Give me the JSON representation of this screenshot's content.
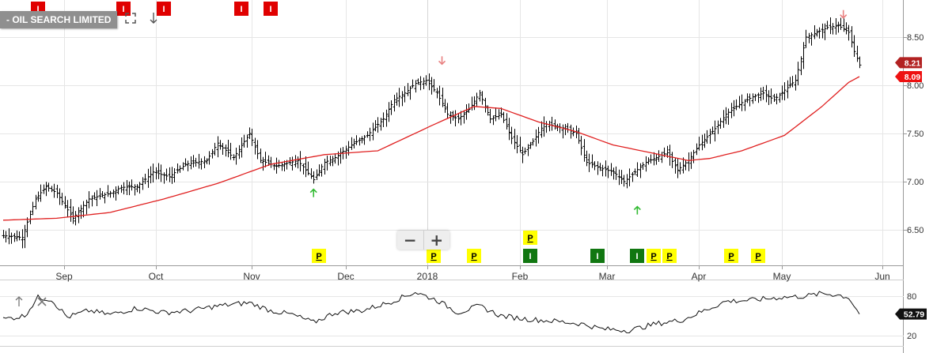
{
  "title": "- OIL SEARCH LIMITED",
  "icons": {
    "fullscreen": "fullscreen-icon",
    "download": "down-arrow-icon",
    "sub_up": "up-arrow-icon",
    "sub_close": "close-icon"
  },
  "zoom": {
    "minus": "−",
    "plus": "+"
  },
  "colors": {
    "bar": "#000000",
    "ma": "#e02020",
    "grid": "#e6e6e6",
    "axis": "#999999",
    "price_tag": "#b22222",
    "ma_tag": "#ee1111",
    "osc_tag": "#111111",
    "up_arrow": "#33bb33",
    "down_arrow": "#e88080",
    "flag_red": "#e00000",
    "flag_green": "#117711",
    "flag_yellow": "#ffff00"
  },
  "chart_data": [
    {
      "type": "ohlc",
      "series": [
        {
          "name": "",
          "kind": "price"
        },
        {
          "name": "",
          "kind": "moving-average"
        }
      ],
      "x_ticks": [
        "Sep",
        "Oct",
        "Nov",
        "Dec",
        "2018",
        "Feb",
        "Mar",
        "Apr",
        "May",
        "Jun"
      ],
      "y_ticks": [
        "6.50",
        "7.00",
        "7.50",
        "8.00",
        "8.50"
      ],
      "ylim": [
        6.2,
        8.8
      ],
      "price_tag": "8.21",
      "ma_tag": "8.09",
      "close_points": [
        {
          "d": 0,
          "c": 6.44
        },
        {
          "d": 7,
          "c": 6.42
        },
        {
          "d": 12,
          "c": 6.82
        },
        {
          "d": 16,
          "c": 6.95
        },
        {
          "d": 20,
          "c": 6.88
        },
        {
          "d": 26,
          "c": 6.62
        },
        {
          "d": 32,
          "c": 6.82
        },
        {
          "d": 40,
          "c": 6.88
        },
        {
          "d": 44,
          "c": 6.94
        },
        {
          "d": 50,
          "c": 6.95
        },
        {
          "d": 56,
          "c": 7.1
        },
        {
          "d": 62,
          "c": 7.05
        },
        {
          "d": 68,
          "c": 7.18
        },
        {
          "d": 76,
          "c": 7.22
        },
        {
          "d": 80,
          "c": 7.4
        },
        {
          "d": 86,
          "c": 7.25
        },
        {
          "d": 92,
          "c": 7.5
        },
        {
          "d": 96,
          "c": 7.22
        },
        {
          "d": 102,
          "c": 7.16
        },
        {
          "d": 110,
          "c": 7.22
        },
        {
          "d": 116,
          "c": 7.02
        },
        {
          "d": 120,
          "c": 7.2
        },
        {
          "d": 124,
          "c": 7.25
        },
        {
          "d": 130,
          "c": 7.38
        },
        {
          "d": 136,
          "c": 7.48
        },
        {
          "d": 142,
          "c": 7.65
        },
        {
          "d": 146,
          "c": 7.85
        },
        {
          "d": 150,
          "c": 7.92
        },
        {
          "d": 154,
          "c": 8.02
        },
        {
          "d": 158,
          "c": 8.05
        },
        {
          "d": 162,
          "c": 7.92
        },
        {
          "d": 166,
          "c": 7.7
        },
        {
          "d": 170,
          "c": 7.65
        },
        {
          "d": 174,
          "c": 7.75
        },
        {
          "d": 178,
          "c": 7.92
        },
        {
          "d": 182,
          "c": 7.65
        },
        {
          "d": 186,
          "c": 7.7
        },
        {
          "d": 190,
          "c": 7.45
        },
        {
          "d": 194,
          "c": 7.28
        },
        {
          "d": 198,
          "c": 7.42
        },
        {
          "d": 202,
          "c": 7.6
        },
        {
          "d": 206,
          "c": 7.58
        },
        {
          "d": 210,
          "c": 7.55
        },
        {
          "d": 214,
          "c": 7.5
        },
        {
          "d": 218,
          "c": 7.2
        },
        {
          "d": 222,
          "c": 7.15
        },
        {
          "d": 228,
          "c": 7.1
        },
        {
          "d": 232,
          "c": 7.0
        },
        {
          "d": 236,
          "c": 7.1
        },
        {
          "d": 240,
          "c": 7.2
        },
        {
          "d": 244,
          "c": 7.25
        },
        {
          "d": 248,
          "c": 7.3
        },
        {
          "d": 252,
          "c": 7.12
        },
        {
          "d": 256,
          "c": 7.22
        },
        {
          "d": 260,
          "c": 7.38
        },
        {
          "d": 266,
          "c": 7.55
        },
        {
          "d": 270,
          "c": 7.7
        },
        {
          "d": 276,
          "c": 7.82
        },
        {
          "d": 280,
          "c": 7.88
        },
        {
          "d": 284,
          "c": 7.92
        },
        {
          "d": 288,
          "c": 7.85
        },
        {
          "d": 292,
          "c": 7.95
        },
        {
          "d": 296,
          "c": 8.05
        },
        {
          "d": 300,
          "c": 8.5
        },
        {
          "d": 304,
          "c": 8.55
        },
        {
          "d": 308,
          "c": 8.6
        },
        {
          "d": 312,
          "c": 8.62
        },
        {
          "d": 316,
          "c": 8.55
        },
        {
          "d": 318,
          "c": 8.35
        },
        {
          "d": 320,
          "c": 8.21
        }
      ],
      "ma_points": [
        {
          "d": 0,
          "v": 6.6
        },
        {
          "d": 20,
          "v": 6.62
        },
        {
          "d": 40,
          "v": 6.68
        },
        {
          "d": 60,
          "v": 6.82
        },
        {
          "d": 80,
          "v": 6.98
        },
        {
          "d": 100,
          "v": 7.18
        },
        {
          "d": 120,
          "v": 7.28
        },
        {
          "d": 140,
          "v": 7.32
        },
        {
          "d": 160,
          "v": 7.58
        },
        {
          "d": 176,
          "v": 7.78
        },
        {
          "d": 186,
          "v": 7.76
        },
        {
          "d": 200,
          "v": 7.62
        },
        {
          "d": 214,
          "v": 7.52
        },
        {
          "d": 228,
          "v": 7.38
        },
        {
          "d": 242,
          "v": 7.3
        },
        {
          "d": 256,
          "v": 7.22
        },
        {
          "d": 264,
          "v": 7.24
        },
        {
          "d": 276,
          "v": 7.32
        },
        {
          "d": 292,
          "v": 7.48
        },
        {
          "d": 306,
          "v": 7.78
        },
        {
          "d": 316,
          "v": 8.03
        },
        {
          "d": 320,
          "v": 8.09
        }
      ],
      "arrows": [
        {
          "dir": "up",
          "d": 116,
          "price": 6.88
        },
        {
          "dir": "down",
          "d": 164,
          "price": 8.26
        },
        {
          "dir": "up",
          "d": 237,
          "price": 6.7
        },
        {
          "dir": "down",
          "d": 314,
          "price": 8.74
        }
      ],
      "flags": [
        {
          "label": "I",
          "color": "red",
          "d": 13,
          "row": "top"
        },
        {
          "label": "I",
          "color": "red",
          "d": 45,
          "row": "top"
        },
        {
          "label": "I",
          "color": "red",
          "d": 60,
          "row": "top"
        },
        {
          "label": "I",
          "color": "red",
          "d": 89,
          "row": "top"
        },
        {
          "label": "I",
          "color": "red",
          "d": 100,
          "row": "top"
        },
        {
          "label": "P",
          "color": "yellow",
          "d": 118,
          "row": "bottom"
        },
        {
          "label": "P",
          "color": "yellow",
          "d": 161,
          "row": "bottom"
        },
        {
          "label": "P",
          "color": "yellow",
          "d": 176,
          "row": "bottom"
        },
        {
          "label": "P",
          "color": "yellow",
          "d": 197,
          "row": "upper"
        },
        {
          "label": "I",
          "color": "green",
          "d": 197,
          "row": "bottom"
        },
        {
          "label": "I",
          "color": "green",
          "d": 222,
          "row": "bottom"
        },
        {
          "label": "I",
          "color": "green",
          "d": 237,
          "row": "bottom"
        },
        {
          "label": "P",
          "color": "yellow",
          "d": 243,
          "row": "bottom"
        },
        {
          "label": "P",
          "color": "yellow",
          "d": 249,
          "row": "bottom"
        },
        {
          "label": "P",
          "color": "yellow",
          "d": 272,
          "row": "bottom"
        },
        {
          "label": "P",
          "color": "yellow",
          "d": 282,
          "row": "bottom"
        }
      ]
    },
    {
      "type": "line",
      "series": [
        {
          "name": "",
          "kind": "oscillator"
        }
      ],
      "y_ticks": [
        "80",
        "20"
      ],
      "ylim": [
        0,
        100
      ],
      "value_tag": "52.79",
      "points": [
        {
          "d": 0,
          "v": 45
        },
        {
          "d": 8,
          "v": 50
        },
        {
          "d": 13,
          "v": 78
        },
        {
          "d": 18,
          "v": 75
        },
        {
          "d": 24,
          "v": 48
        },
        {
          "d": 32,
          "v": 58
        },
        {
          "d": 40,
          "v": 52
        },
        {
          "d": 50,
          "v": 62
        },
        {
          "d": 60,
          "v": 55
        },
        {
          "d": 70,
          "v": 58
        },
        {
          "d": 80,
          "v": 65
        },
        {
          "d": 92,
          "v": 70
        },
        {
          "d": 100,
          "v": 58
        },
        {
          "d": 108,
          "v": 52
        },
        {
          "d": 116,
          "v": 40
        },
        {
          "d": 124,
          "v": 55
        },
        {
          "d": 134,
          "v": 58
        },
        {
          "d": 144,
          "v": 70
        },
        {
          "d": 154,
          "v": 86
        },
        {
          "d": 162,
          "v": 74
        },
        {
          "d": 170,
          "v": 55
        },
        {
          "d": 178,
          "v": 65
        },
        {
          "d": 186,
          "v": 50
        },
        {
          "d": 196,
          "v": 45
        },
        {
          "d": 206,
          "v": 42
        },
        {
          "d": 216,
          "v": 38
        },
        {
          "d": 224,
          "v": 30
        },
        {
          "d": 234,
          "v": 28
        },
        {
          "d": 244,
          "v": 38
        },
        {
          "d": 254,
          "v": 44
        },
        {
          "d": 262,
          "v": 58
        },
        {
          "d": 270,
          "v": 72
        },
        {
          "d": 280,
          "v": 74
        },
        {
          "d": 290,
          "v": 78
        },
        {
          "d": 300,
          "v": 80
        },
        {
          "d": 306,
          "v": 84
        },
        {
          "d": 312,
          "v": 82
        },
        {
          "d": 316,
          "v": 78
        },
        {
          "d": 320,
          "v": 52.79
        }
      ]
    }
  ]
}
